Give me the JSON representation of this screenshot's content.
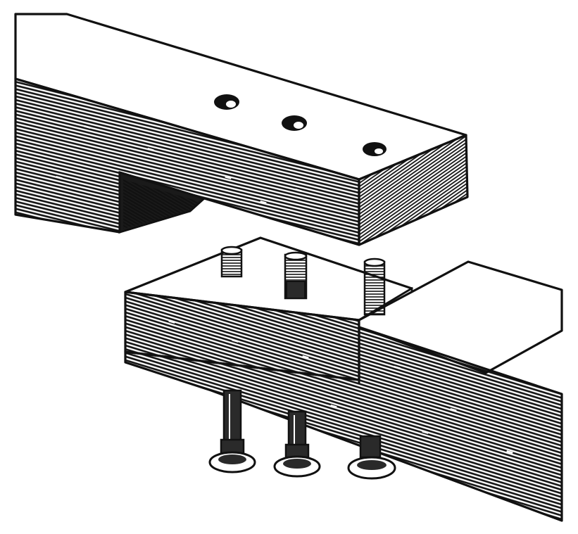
{
  "figure": {
    "subject": "lap-joint-with-carriage-bolts-illustration",
    "style": "black-and-white engraving",
    "colors": {
      "ink": "#111111",
      "paper": "#ffffff",
      "dark-fill": "#1a1a1a"
    },
    "parts": {
      "upper_timber": {
        "holes": 3
      },
      "lower_timber": {
        "bolts": 3
      }
    }
  }
}
